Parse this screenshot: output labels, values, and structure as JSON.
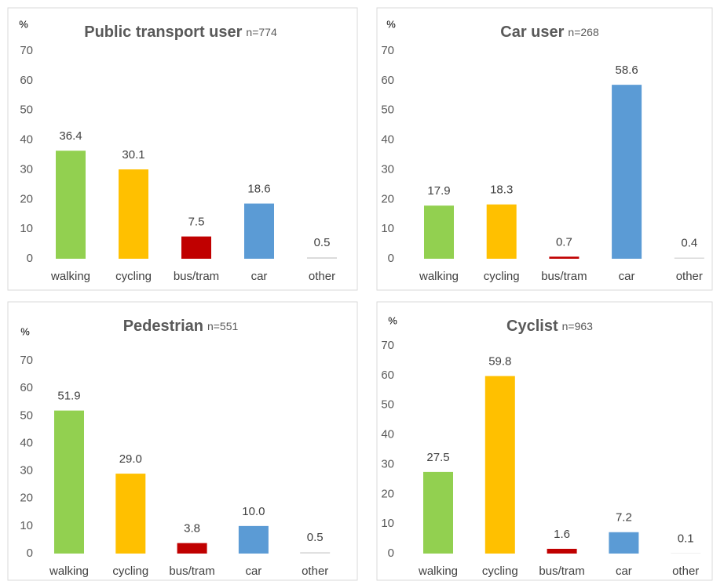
{
  "chart_data": [
    {
      "type": "bar",
      "title": "Public transport user",
      "subtitle": "n=774",
      "y_label": "%",
      "categories": [
        "walking",
        "cycling",
        "bus/tram",
        "car",
        "other"
      ],
      "values": [
        36.4,
        30.1,
        7.5,
        18.6,
        0.5
      ],
      "value_labels": [
        "36.4",
        "30.1",
        "7.5",
        "18.6",
        "0.5"
      ],
      "colors": [
        "#92d050",
        "#ffc000",
        "#c00000",
        "#5b9bd5",
        "#d9d9d9"
      ],
      "ylim": [
        0,
        70
      ],
      "yticks": [
        0,
        10,
        20,
        30,
        40,
        50,
        60,
        70
      ]
    },
    {
      "type": "bar",
      "title": "Car user",
      "subtitle": "n=268",
      "y_label": "%",
      "categories": [
        "walking",
        "cycling",
        "bus/tram",
        "car",
        "other"
      ],
      "values": [
        17.9,
        18.3,
        0.7,
        58.6,
        0.4
      ],
      "value_labels": [
        "17.9",
        "18.3",
        "0.7",
        "58.6",
        "0.4"
      ],
      "colors": [
        "#92d050",
        "#ffc000",
        "#c00000",
        "#5b9bd5",
        "#d9d9d9"
      ],
      "ylim": [
        0,
        70
      ],
      "yticks": [
        0,
        10,
        20,
        30,
        40,
        50,
        60,
        70
      ]
    },
    {
      "type": "bar",
      "title": "Pedestrian",
      "subtitle": "n=551",
      "y_label": "%",
      "categories": [
        "walking",
        "cycling",
        "bus/tram",
        "car",
        "other"
      ],
      "values": [
        51.9,
        29.0,
        3.8,
        10.0,
        0.5
      ],
      "value_labels": [
        "51.9",
        "29.0",
        "3.8",
        "10.0",
        "0.5"
      ],
      "colors": [
        "#92d050",
        "#ffc000",
        "#c00000",
        "#5b9bd5",
        "#d9d9d9"
      ],
      "ylim": [
        0,
        70
      ],
      "yticks": [
        0,
        10,
        20,
        30,
        40,
        50,
        60,
        70
      ]
    },
    {
      "type": "bar",
      "title": "Cyclist",
      "subtitle": "n=963",
      "y_label": "%",
      "categories": [
        "walking",
        "cycling",
        "bus/tram",
        "car",
        "other"
      ],
      "values": [
        27.5,
        59.8,
        1.6,
        7.2,
        0.1
      ],
      "value_labels": [
        "27.5",
        "59.8",
        "1.6",
        "7.2",
        "0.1"
      ],
      "colors": [
        "#92d050",
        "#ffc000",
        "#c00000",
        "#5b9bd5",
        "#d9d9d9"
      ],
      "ylim": [
        0,
        70
      ],
      "yticks": [
        0,
        10,
        20,
        30,
        40,
        50,
        60,
        70
      ]
    }
  ]
}
